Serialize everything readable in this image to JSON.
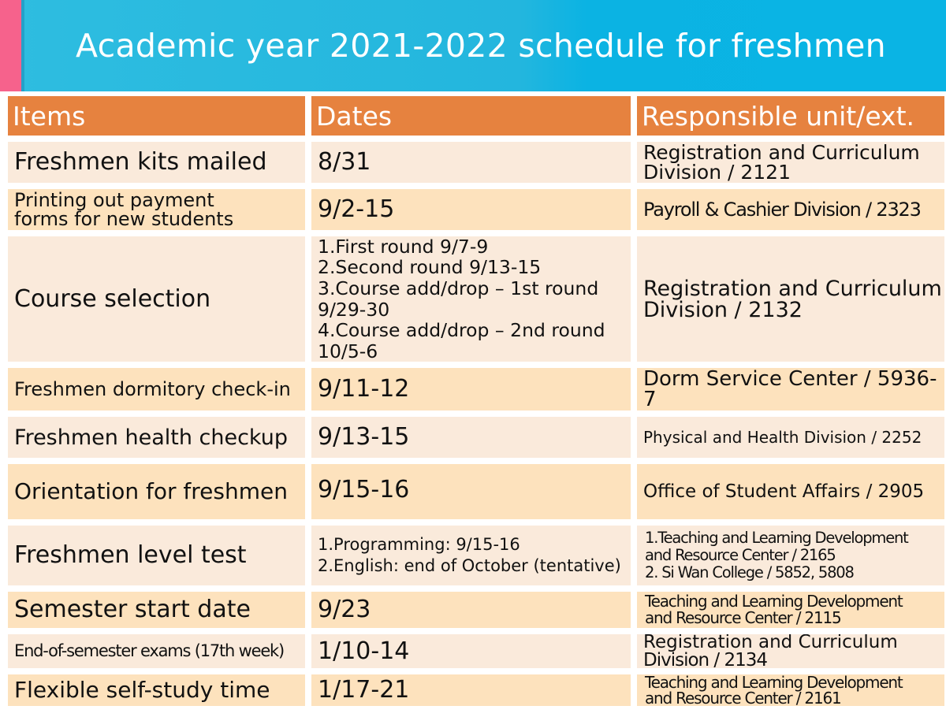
{
  "title": "Academic year 2021-2022 schedule for freshmen",
  "headers": {
    "items": "Items",
    "dates": "Dates",
    "unit": "Responsible unit/ext."
  },
  "rows": [
    {
      "item": "Freshmen kits mailed",
      "date_lines": [
        "8/31"
      ],
      "unit_lines": [
        "Registration and Curriculum",
        "Division / 2121"
      ]
    },
    {
      "item_lines": [
        "Printing out payment",
        "forms for new students"
      ],
      "date_lines": [
        "9/2-15"
      ],
      "unit_lines": [
        "Payroll & Cashier Division / 2323"
      ]
    },
    {
      "item": "Course selection",
      "date_lines": [
        "1.First round 9/7-9",
        "2.Second round 9/13-15",
        "3.Course add/drop – 1st round",
        "9/29-30",
        "4.Course add/drop – 2nd round",
        "10/5-6"
      ],
      "unit_lines": [
        "Registration and Curriculum",
        "Division / 2132"
      ]
    },
    {
      "item": "Freshmen dormitory check-in",
      "date_lines": [
        "9/11-12"
      ],
      "unit_lines": [
        "Dorm Service Center / 5936-7"
      ]
    },
    {
      "item": "Freshmen health checkup",
      "date_lines": [
        "9/13-15"
      ],
      "unit_lines": [
        "Physical and Health Division / 2252"
      ]
    },
    {
      "item": "Orientation for freshmen",
      "date_lines": [
        "9/15-16"
      ],
      "unit_lines": [
        "Office of Student Affairs / 2905"
      ]
    },
    {
      "item": "Freshmen level test",
      "date_lines": [
        "1.Programming: 9/15-16",
        "2.English: end of October (tentative)"
      ],
      "unit_lines": [
        "1.Teaching and Learning Development",
        "and Resource Center / 2165",
        "2. Si Wan College / 5852, 5808"
      ]
    },
    {
      "item": "Semester start date",
      "date_lines": [
        "9/23"
      ],
      "unit_lines": [
        "Teaching and Learning Development",
        "and Resource Center / 2115"
      ]
    },
    {
      "item": "End-of-semester exams (17th week)",
      "date_lines": [
        "1/10-14"
      ],
      "unit_lines": [
        "Registration and Curriculum",
        "Division / 2134"
      ]
    },
    {
      "item": "Flexible self-study time",
      "date_lines": [
        "1/17-21"
      ],
      "unit_lines": [
        "Teaching and Learning Development",
        "and Resource Center / 2161"
      ]
    }
  ],
  "colors": {
    "banner": "#23b6de",
    "accent": "#f6628c",
    "header": "#e6823f",
    "row_light": "#faeadb",
    "row_dark": "#fde2bd"
  }
}
